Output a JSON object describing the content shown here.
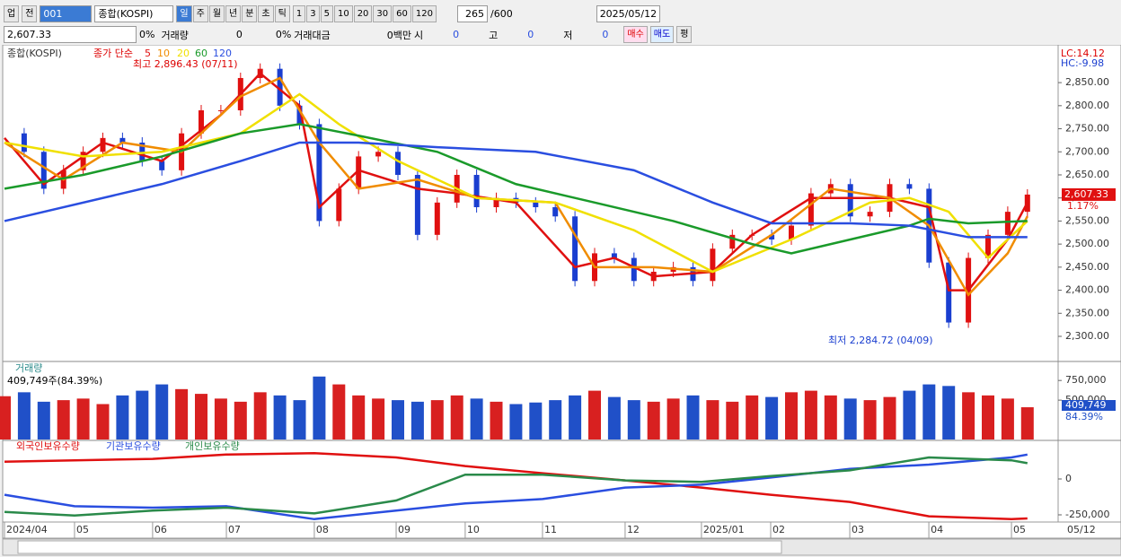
{
  "toolbar": {
    "market": "업",
    "mode": "전",
    "code": "001",
    "name": "종합(KOSPI)",
    "periods": [
      "일",
      "주",
      "월",
      "년",
      "분",
      "초",
      "틱"
    ],
    "intervals": [
      "1",
      "3",
      "5",
      "10",
      "20",
      "30",
      "60",
      "120"
    ],
    "count": "265",
    "max": "/600",
    "date": "2025/05/12"
  },
  "info": {
    "price": "2,607.33",
    "change": "0%",
    "volume_label": "거래량",
    "volume": "0",
    "volume_change": "0%",
    "amount_label": "거래대금",
    "amount": "0백만",
    "open_label": "시",
    "open": "0",
    "high_label": "고",
    "high": "0",
    "low_label": "저",
    "low": "0",
    "buy": "매수",
    "sell": "매도",
    "avg": "평"
  },
  "chart_data": [
    {
      "type": "candlestick",
      "title": "종합(KOSPI)",
      "ma_label": "종가 단순",
      "lc": "LC:14.12",
      "hc": "HC:-9.98",
      "high_note": "최고 2,896.43 (07/11)",
      "low_note": "최저 2,284.72 (04/09)",
      "last_label": "2,607.33",
      "last_change": "1.17%",
      "close": [
        2740,
        2700,
        2620,
        2660,
        2700,
        2730,
        2720,
        2680,
        2660,
        2740,
        2790,
        2790,
        2860,
        2880,
        2800,
        2760,
        2550,
        2620,
        2690,
        2700,
        2650,
        2520,
        2590,
        2650,
        2580,
        2600,
        2590,
        2580,
        2560,
        2420,
        2480,
        2470,
        2420,
        2440,
        2450,
        2420,
        2490,
        2520,
        2520,
        2510,
        2540,
        2610,
        2630,
        2560,
        2570,
        2630,
        2620,
        2460,
        2330,
        2470,
        2520,
        2570,
        2607.33
      ],
      "series": [
        {
          "name": "5",
          "color": "#e01010",
          "x": [
            0,
            2,
            5,
            8,
            11,
            13,
            15,
            16,
            18,
            21,
            23,
            26,
            29,
            31,
            33,
            36,
            38,
            41,
            43,
            45,
            47,
            48,
            49,
            51,
            52
          ],
          "values": [
            2730,
            2630,
            2720,
            2680,
            2780,
            2870,
            2800,
            2580,
            2660,
            2620,
            2610,
            2590,
            2450,
            2470,
            2430,
            2440,
            2520,
            2600,
            2600,
            2600,
            2580,
            2400,
            2400,
            2510,
            2590
          ]
        },
        {
          "name": "10",
          "color": "#f08c00",
          "x": [
            0,
            3,
            6,
            9,
            12,
            14,
            16,
            18,
            21,
            24,
            28,
            30,
            33,
            36,
            39,
            42,
            45,
            47,
            49,
            51,
            52
          ],
          "values": [
            2720,
            2640,
            2720,
            2700,
            2820,
            2860,
            2720,
            2620,
            2640,
            2600,
            2590,
            2450,
            2450,
            2440,
            2520,
            2620,
            2600,
            2540,
            2390,
            2480,
            2560
          ]
        },
        {
          "name": "20",
          "color": "#f0e000",
          "x": [
            0,
            4,
            8,
            12,
            15,
            17,
            20,
            24,
            28,
            32,
            36,
            40,
            44,
            46,
            48,
            50,
            52
          ],
          "values": [
            2720,
            2690,
            2700,
            2740,
            2825,
            2760,
            2680,
            2600,
            2590,
            2530,
            2440,
            2510,
            2590,
            2600,
            2570,
            2470,
            2550
          ]
        },
        {
          "name": "60",
          "color": "#1a9a2a",
          "x": [
            0,
            4,
            8,
            12,
            15,
            18,
            22,
            26,
            30,
            34,
            38,
            40,
            43,
            46,
            47,
            49,
            52
          ],
          "values": [
            2620,
            2650,
            2690,
            2740,
            2760,
            2735,
            2700,
            2630,
            2590,
            2550,
            2500,
            2480,
            2510,
            2540,
            2555,
            2545,
            2550
          ]
        },
        {
          "name": "120",
          "color": "#2a4ee0",
          "x": [
            0,
            8,
            12,
            15,
            18,
            22,
            27,
            32,
            36,
            39,
            43,
            46,
            49,
            52
          ],
          "values": [
            2550,
            2630,
            2680,
            2720,
            2720,
            2710,
            2700,
            2660,
            2590,
            2545,
            2545,
            2540,
            2515,
            2515
          ]
        }
      ],
      "ylim": [
        2247.5,
        2928
      ],
      "yticks": [
        {
          "value": 2300,
          "label": "2,300.00"
        },
        {
          "value": 2350,
          "label": "2,350.00"
        },
        {
          "value": 2400,
          "label": "2,400.00"
        },
        {
          "value": 2450,
          "label": "2,450.00"
        },
        {
          "value": 2500,
          "label": "2,500.00"
        },
        {
          "value": 2550,
          "label": "2,550.00"
        },
        {
          "value": 2600,
          "label": "2,600.00"
        },
        {
          "value": 2650,
          "label": "2,650.00"
        },
        {
          "value": 2700,
          "label": "2,700.00"
        },
        {
          "value": 2750,
          "label": "2,750.00"
        },
        {
          "value": 2800,
          "label": "2,800.00"
        },
        {
          "value": 2850,
          "label": "2,850.00"
        }
      ]
    },
    {
      "type": "bar",
      "title": "거래량",
      "note": "409,749주(84.39%)",
      "last_label": "409,749",
      "last_pct": "84.39%",
      "values": [
        550000,
        600000,
        480000,
        500000,
        520000,
        450000,
        560000,
        620000,
        700000,
        640000,
        580000,
        520000,
        480000,
        600000,
        560000,
        500000,
        800000,
        700000,
        560000,
        520000,
        500000,
        480000,
        500000,
        560000,
        520000,
        480000,
        450000,
        470000,
        500000,
        560000,
        620000,
        540000,
        500000,
        480000,
        520000,
        560000,
        500000,
        480000,
        560000,
        540000,
        600000,
        620000,
        560000,
        520000,
        500000,
        540000,
        620000,
        700000,
        680000,
        600000,
        560000,
        520000,
        409749
      ],
      "ylim": [
        0,
        980000
      ],
      "yticks": [
        {
          "value": 500000,
          "label": "500,000"
        },
        {
          "value": 750000,
          "label": "750,000"
        }
      ]
    },
    {
      "type": "line",
      "x": [
        0,
        3.56,
        7.53,
        11.28,
        15.75,
        19.91,
        23.42,
        27.35,
        31.55,
        35.43,
        38.95,
        42.97,
        46.99,
        51.19,
        52
      ],
      "series": [
        {
          "name": "외국인보유수량",
          "color": "#e01010",
          "values": [
            120000,
            130000,
            140000,
            170000,
            180000,
            150000,
            90000,
            40000,
            -10000,
            -60000,
            -110000,
            -160000,
            -260000,
            -280000,
            -275000
          ]
        },
        {
          "name": "기관보유수량",
          "color": "#2a4ee0",
          "values": [
            -110000,
            -190000,
            -200000,
            -190000,
            -280000,
            -220000,
            -170000,
            -140000,
            -60000,
            -40000,
            10000,
            70000,
            100000,
            150000,
            170000
          ]
        },
        {
          "name": "개인보유수량",
          "color": "#2a8a4a",
          "values": [
            -230000,
            -255000,
            -220000,
            -200000,
            -240000,
            -150000,
            30000,
            30000,
            -10000,
            -20000,
            20000,
            60000,
            150000,
            130000,
            110000
          ]
        }
      ],
      "ylim": [
        -300000,
        262500
      ],
      "yticks": [
        0,
        {
          "value": -250000,
          "label": "-250,000"
        }
      ]
    }
  ],
  "xticks": [
    {
      "value": 0,
      "label": "2024/04"
    },
    {
      "value": 3.56,
      "label": "05"
    },
    {
      "value": 7.53,
      "label": "06"
    },
    {
      "value": 11.28,
      "label": "07"
    },
    {
      "value": 15.75,
      "label": "08"
    },
    {
      "value": 19.91,
      "label": "09"
    },
    {
      "value": 23.42,
      "label": "10"
    },
    {
      "value": 27.35,
      "label": "11"
    },
    {
      "value": 31.55,
      "label": "12"
    },
    {
      "value": 35.43,
      "label": "2025/01"
    },
    {
      "value": 38.95,
      "label": "02"
    },
    {
      "value": 42.97,
      "label": "03"
    },
    {
      "value": 46.99,
      "label": "04"
    },
    {
      "value": 51.19,
      "label": "05"
    }
  ],
  "axis_date": "05/12"
}
